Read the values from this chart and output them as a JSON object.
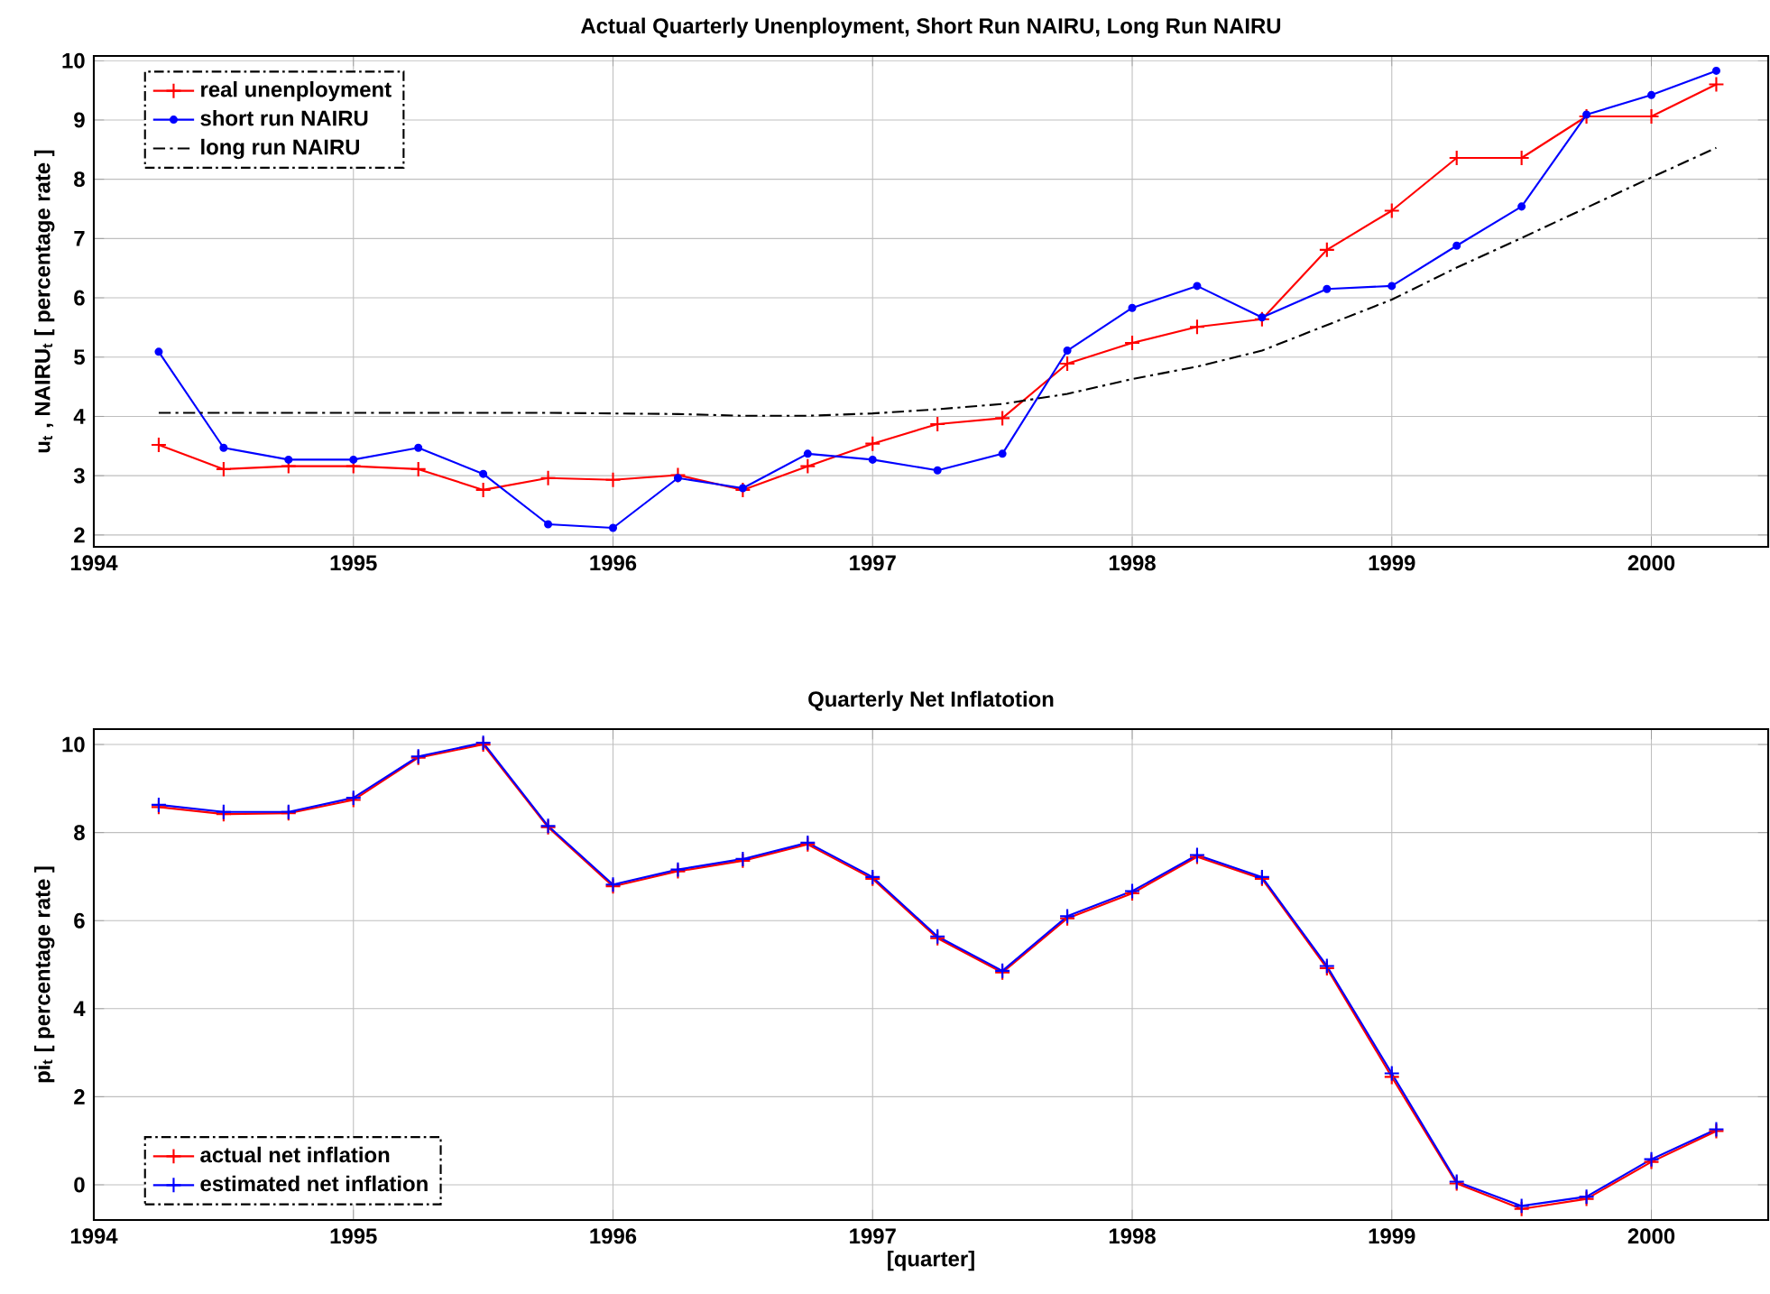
{
  "chart_data": [
    {
      "type": "line",
      "title": "Actual Quarterly Unenployment, Short Run NAIRU, Long Run NAIRU",
      "ylabel": "u$_{t}$ , NAIRU$_{t}$ [ percentage rate ]",
      "x": [
        1994.25,
        1994.5,
        1994.75,
        1995,
        1995.25,
        1995.5,
        1995.75,
        1996,
        1996.25,
        1996.5,
        1996.75,
        1997,
        1997.25,
        1997.5,
        1997.75,
        1998,
        1998.25,
        1998.5,
        1998.75,
        1999,
        1999.25,
        1999.5,
        1999.75,
        2000,
        2000.25
      ],
      "xlim": [
        1994,
        2000.45
      ],
      "ylim": [
        1.8,
        10.08
      ],
      "xticks": [
        1994,
        1995,
        1996,
        1997,
        1998,
        1999,
        2000
      ],
      "yticks": [
        2,
        3,
        4,
        5,
        6,
        7,
        8,
        9,
        10
      ],
      "grid": true,
      "legend": "top left",
      "series": [
        {
          "name": "real unenployment",
          "color": "#ff0000",
          "marker": "cross",
          "line_style": "solid",
          "values": [
            3.52,
            3.11,
            3.16,
            3.16,
            3.11,
            2.76,
            2.96,
            2.93,
            3.01,
            2.76,
            3.16,
            3.54,
            3.87,
            3.97,
            4.89,
            5.24,
            5.51,
            5.64,
            6.81,
            7.47,
            8.36,
            8.36,
            9.06,
            9.06,
            9.6
          ]
        },
        {
          "name": "short run NAIRU",
          "color": "#0000ff",
          "marker": "circle",
          "line_style": "solid",
          "values": [
            5.09,
            3.47,
            3.27,
            3.27,
            3.47,
            3.03,
            2.18,
            2.12,
            2.96,
            2.79,
            3.37,
            3.27,
            3.09,
            3.37,
            5.11,
            5.83,
            6.2,
            5.67,
            6.15,
            6.2,
            6.88,
            7.54,
            9.09,
            9.42,
            9.83
          ]
        },
        {
          "name": "long run NAIRU",
          "color": "#000000",
          "marker": "none",
          "line_style": "dashed",
          "values": [
            4.06,
            4.06,
            4.06,
            4.06,
            4.06,
            4.06,
            4.06,
            4.05,
            4.04,
            4.01,
            4.01,
            4.05,
            4.12,
            4.21,
            4.38,
            4.63,
            4.84,
            5.11,
            5.54,
            5.97,
            6.51,
            7.01,
            7.52,
            8.03,
            8.53
          ]
        }
      ]
    },
    {
      "type": "line",
      "title": "Quarterly Net Inflatotion",
      "xlabel": "[quarter]",
      "ylabel": "pi$_{t}$ [ percentage rate ]",
      "x": [
        1994.25,
        1994.5,
        1994.75,
        1995,
        1995.25,
        1995.5,
        1995.75,
        1996,
        1996.25,
        1996.5,
        1996.75,
        1997,
        1997.25,
        1997.5,
        1997.75,
        1998,
        1998.25,
        1998.5,
        1998.75,
        1999,
        1999.25,
        1999.5,
        1999.75,
        2000,
        2000.25
      ],
      "xlim": [
        1994,
        2000.45
      ],
      "ylim": [
        -0.8,
        10.35
      ],
      "xticks": [
        1994,
        1995,
        1996,
        1997,
        1998,
        1999,
        2000
      ],
      "yticks": [
        0,
        2,
        4,
        6,
        8,
        10
      ],
      "grid": true,
      "legend": "bottom left",
      "series": [
        {
          "name": "actual net inflation",
          "color": "#ff0000",
          "marker": "cross",
          "line_style": "solid",
          "values": [
            8.58,
            8.42,
            8.44,
            8.74,
            9.7,
            10.0,
            8.12,
            6.78,
            7.12,
            7.36,
            7.73,
            6.95,
            5.6,
            4.82,
            6.05,
            6.62,
            7.45,
            6.95,
            4.92,
            2.45,
            0.03,
            -0.55,
            -0.32,
            0.52,
            1.22
          ]
        },
        {
          "name": "estimated net inflation",
          "color": "#0000ff",
          "marker": "cross",
          "line_style": "solid",
          "values": [
            8.63,
            8.47,
            8.47,
            8.79,
            9.73,
            10.04,
            8.15,
            6.82,
            7.16,
            7.4,
            7.77,
            6.99,
            5.64,
            4.86,
            6.1,
            6.67,
            7.49,
            6.99,
            4.97,
            2.53,
            0.07,
            -0.48,
            -0.27,
            0.58,
            1.26
          ]
        }
      ]
    }
  ]
}
